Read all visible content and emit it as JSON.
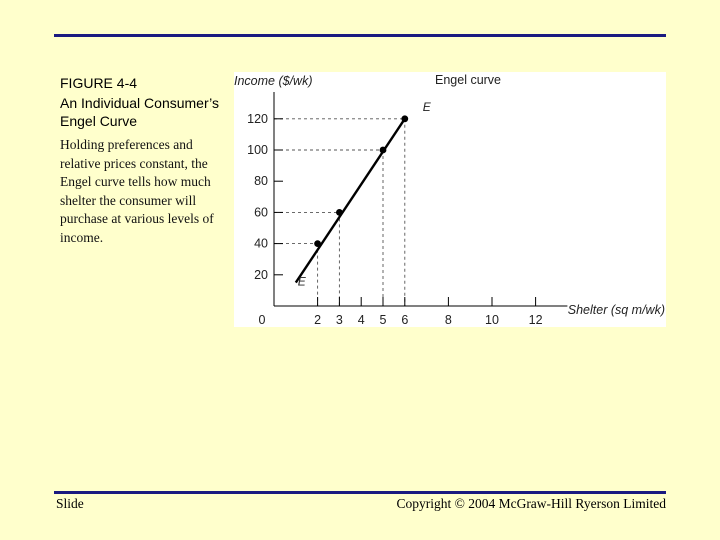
{
  "caption": {
    "figure_label": "FIGURE 4-4",
    "title": "An Individual Consumer’s Engel Curve",
    "text": "Holding preferences and relative prices constant, the Engel curve tells how much shelter the consumer will purchase at various levels of income."
  },
  "footer": {
    "left": "Slide",
    "right": "Copyright © 2004 McGraw-Hill Ryerson Limited"
  },
  "colors": {
    "background": "#ffffcc",
    "rule": "#1a1a80",
    "panel": "#ffffff",
    "curve": "#000000"
  },
  "chart_data": {
    "type": "line",
    "ylabel": "Income ($/wk)",
    "xlabel": "Shelter (sq m/wk)",
    "curve_label": "Engel curve",
    "curve_end_labels": {
      "start": "E",
      "end": "E"
    },
    "x_ticks": [
      0,
      2,
      3,
      4,
      5,
      6,
      8,
      10,
      12
    ],
    "y_ticks": [
      20,
      40,
      60,
      80,
      100,
      120
    ],
    "xlim": [
      0,
      13
    ],
    "ylim": [
      0,
      140
    ],
    "line": {
      "x": [
        1,
        6
      ],
      "y": [
        15,
        120
      ]
    },
    "points": [
      {
        "x": 2,
        "y": 40
      },
      {
        "x": 3,
        "y": 60
      },
      {
        "x": 5,
        "y": 100
      },
      {
        "x": 6,
        "y": 120
      }
    ],
    "grid": false,
    "dashed_guides": true
  }
}
